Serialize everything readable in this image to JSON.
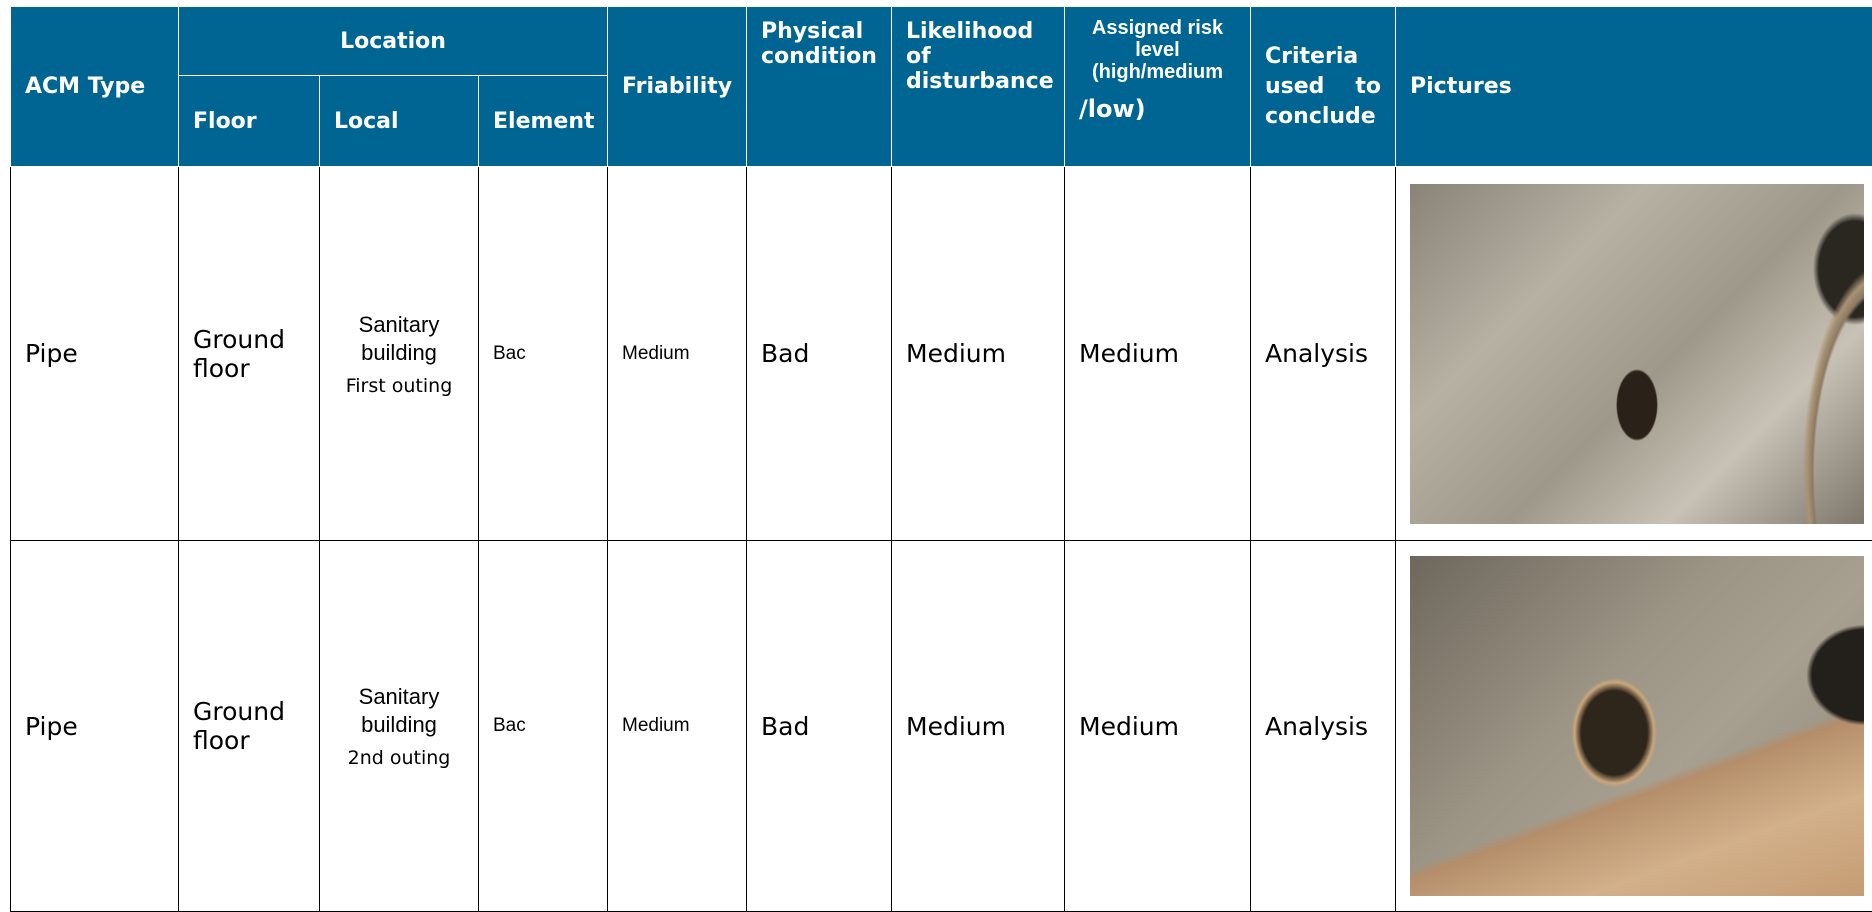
{
  "table": {
    "header": {
      "acm_type": "ACM Type",
      "location": "Location",
      "floor": "Floor",
      "local": "Local",
      "element": "Element",
      "friability": "Friability",
      "physical_condition": "Physical condition",
      "likelihood": "Likelihood of disturbance",
      "assigned_risk": "Assigned risk level (high/medium",
      "assigned_risk_end": "/low)",
      "criteria": "Criteria used to conclude",
      "pictures": "Pictures"
    },
    "rows": [
      [
        "Pipe",
        "Ground floor",
        "Sanitary building",
        "First outing",
        "Bac",
        "Medium",
        "Bad",
        "Medium",
        "Medium",
        "Analysis"
      ],
      [
        "Pipe",
        "Ground floor",
        "Sanitary building",
        "2nd outing",
        "Bac",
        "Medium",
        "Bad",
        "Medium",
        "Medium",
        "Analysis"
      ]
    ]
  }
}
